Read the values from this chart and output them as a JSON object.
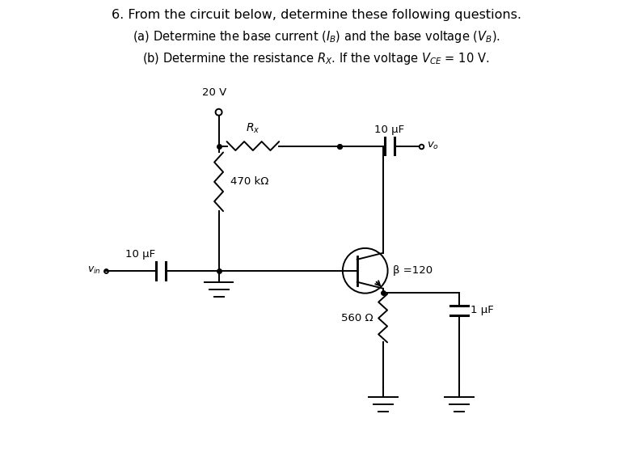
{
  "title_line1": "6. From the circuit below, determine these following questions.",
  "title_line2": "(a) Determine the base current $(I_B)$ and the base voltage $(V_B)$.",
  "title_line3": "(b) Determine the resistance $R_X$. If the voltage $V_{CE}$ = 10 V.",
  "bg_color": "#ffffff",
  "text_color": "#000000",
  "label_20V": "20 V",
  "label_Rx": "$R_x$",
  "label_470k": "470 kΩ",
  "label_10uF_top": "10 μF",
  "label_10uF_in": "10 μF",
  "label_1uF": "1 μF",
  "label_560": "560 Ω",
  "label_beta": "β =120",
  "label_vo": "$v_o$",
  "label_vin": "$v_{in}$"
}
